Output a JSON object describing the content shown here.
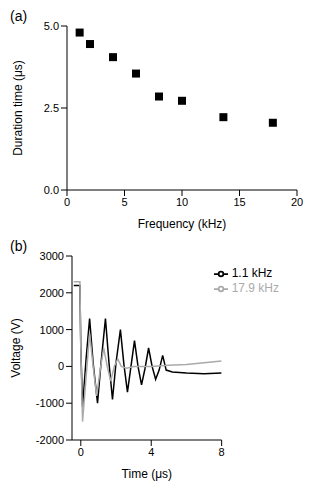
{
  "chart_data": [
    {
      "type": "scatter",
      "title": "(a)",
      "x_label": "Frequency (kHz)",
      "y_label": "Duration time (μs)",
      "x": [
        1.1,
        2,
        4,
        6,
        8,
        10,
        13.6,
        17.9
      ],
      "values": [
        4.8,
        4.45,
        4.05,
        3.55,
        2.85,
        2.72,
        2.22,
        2.05
      ],
      "color": "#000000",
      "marker": "square",
      "xlim": [
        0,
        20
      ],
      "xticks": [
        0,
        5,
        10,
        15,
        20
      ],
      "ylim": [
        0,
        5.0
      ],
      "yticks": [
        {
          "value": 0,
          "label": "0.0"
        },
        {
          "value": 2.5,
          "label": "2.5"
        },
        {
          "value": 5,
          "label": "5.0"
        }
      ],
      "grid": false
    },
    {
      "type": "line",
      "title": "(b)",
      "x_label": "Time (μs)",
      "y_label": "Voltage (V)",
      "series": [
        {
          "name": "1.1 kHz",
          "color": "#000000",
          "x": [
            -0.4,
            -0.05,
            0,
            0.1,
            0.3,
            0.5,
            0.7,
            0.95,
            1.15,
            1.4,
            1.6,
            1.8,
            2.0,
            2.25,
            2.45,
            2.65,
            2.85,
            3.05,
            3.25,
            3.45,
            3.65,
            3.85,
            4.05,
            4.25,
            4.45,
            4.65,
            4.85,
            5.2,
            6,
            7,
            8
          ],
          "values": [
            2200,
            2200,
            500,
            -1100,
            200,
            1300,
            100,
            -1000,
            100,
            1300,
            100,
            -900,
            100,
            1000,
            50,
            -700,
            0,
            700,
            0,
            -500,
            -50,
            500,
            0,
            -350,
            -100,
            300,
            -100,
            -150,
            -180,
            -200,
            -180
          ]
        },
        {
          "name": "17.9 kHz",
          "color": "#aaaaaa",
          "x": [
            -0.4,
            -0.05,
            0,
            0.1,
            0.3,
            0.5,
            0.7,
            0.9,
            1.1,
            1.3,
            1.5,
            1.7,
            1.9,
            2.1,
            2.3,
            2.6,
            3,
            4,
            5,
            6,
            7,
            8
          ],
          "values": [
            2300,
            2300,
            500,
            -1500,
            -300,
            900,
            0,
            -800,
            -100,
            500,
            0,
            -400,
            0,
            200,
            0,
            -50,
            0,
            0,
            30,
            50,
            100,
            150
          ]
        }
      ],
      "xlim": [
        -0.5,
        8
      ],
      "xticks": [
        0,
        4,
        8
      ],
      "ylim": [
        -2000,
        3000
      ],
      "yticks": [
        -2000,
        -1000,
        0,
        1000,
        2000,
        3000
      ],
      "legend": "upper right",
      "grid": false
    }
  ]
}
